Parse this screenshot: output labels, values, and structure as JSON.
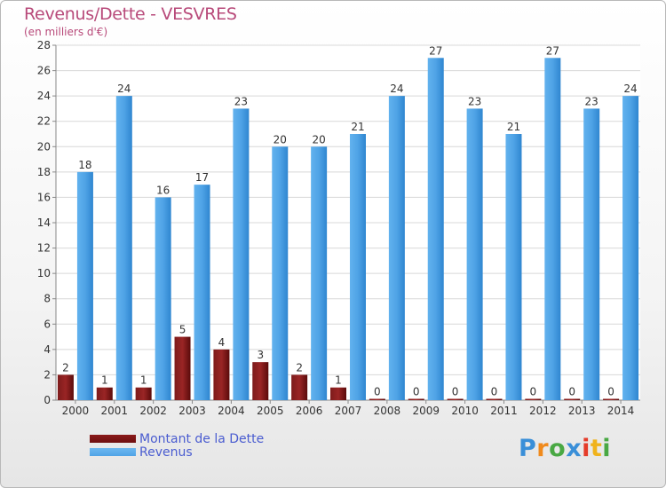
{
  "title": "Revenus/Dette - VESVRES",
  "subtitle": "(en milliers d'€)",
  "logo_text": "Proxiti",
  "colors": {
    "dette": "#6e0f0f",
    "revenus": "#4fa3e6",
    "title": "#b84a7a",
    "legend_text": "#4a5cd0"
  },
  "chart_data": {
    "type": "bar",
    "categories": [
      "2000",
      "2001",
      "2002",
      "2003",
      "2004",
      "2005",
      "2006",
      "2007",
      "2008",
      "2009",
      "2010",
      "2011",
      "2012",
      "2013",
      "2014"
    ],
    "series": [
      {
        "name": "Montant de la Dette",
        "color": "#6e0f0f",
        "values": [
          2,
          1,
          1,
          5,
          4,
          3,
          2,
          1,
          0,
          0,
          0,
          0,
          0,
          0,
          0
        ]
      },
      {
        "name": "Revenus",
        "color": "#4fa3e6",
        "values": [
          18,
          24,
          16,
          17,
          23,
          20,
          20,
          21,
          24,
          27,
          23,
          21,
          27,
          23,
          24
        ]
      }
    ],
    "ylim": [
      0,
      28
    ],
    "yticks": [
      0,
      2,
      4,
      6,
      8,
      10,
      12,
      14,
      16,
      18,
      20,
      22,
      24,
      26,
      28
    ],
    "grid": true,
    "legend_position": "bottom-left"
  }
}
